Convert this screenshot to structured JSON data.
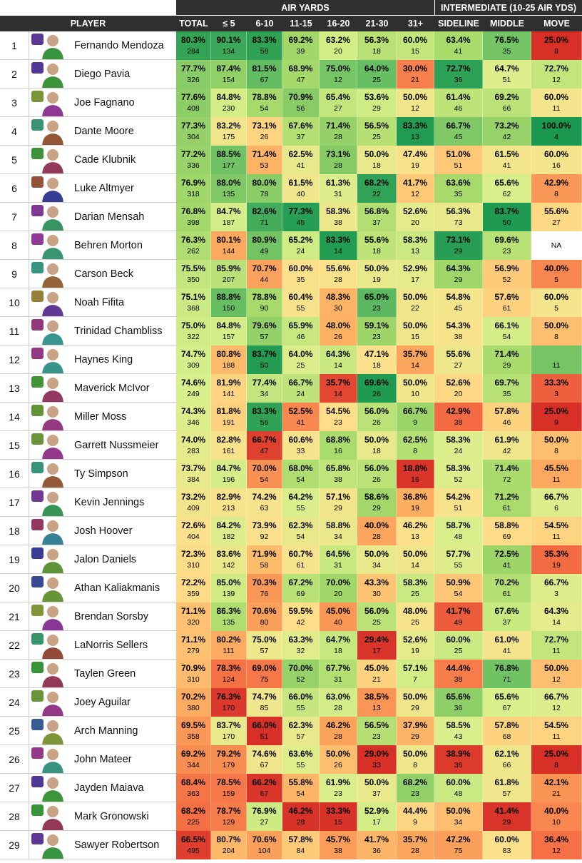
{
  "groups": {
    "air_yards": "AIR YARDS",
    "intermediate": "INTERMEDIATE (10-25 AIR YDS)"
  },
  "headers": {
    "player": "PLAYER",
    "total": "TOTAL",
    "le5": "≤ 5",
    "y6_10": "6-10",
    "y11_15": "11-15",
    "y16_20": "16-20",
    "y21_30": "21-30",
    "y31": "31+",
    "sideline": "SIDELINE",
    "middle": "MIDDLE",
    "move": "MOVE"
  },
  "colors": {
    "header_bg": "#2f2f2f",
    "row_border": "#cfcfcf"
  },
  "players": [
    {
      "rank": "1",
      "name": "Fernando Mendoza",
      "logo": "indiana-logo-icon",
      "stats": [
        [
          "80.3%",
          "284"
        ],
        [
          "90.1%",
          "134"
        ],
        [
          "83.3%",
          "58"
        ],
        [
          "69.2%",
          "39"
        ],
        [
          "63.2%",
          "20"
        ],
        [
          "56.3%",
          "18"
        ],
        [
          "60.0%",
          "15"
        ],
        [
          "63.4%",
          "41"
        ],
        [
          "76.5%",
          "35"
        ],
        [
          "25.0%",
          "8"
        ]
      ]
    },
    {
      "rank": "2",
      "name": "Diego Pavia",
      "logo": "vanderbilt-logo-icon",
      "stats": [
        [
          "77.7%",
          "326"
        ],
        [
          "87.4%",
          "154"
        ],
        [
          "81.5%",
          "67"
        ],
        [
          "68.9%",
          "47"
        ],
        [
          "75.0%",
          "12"
        ],
        [
          "64.0%",
          "25"
        ],
        [
          "30.0%",
          "21"
        ],
        [
          "72.7%",
          "36"
        ],
        [
          "64.7%",
          "51"
        ],
        [
          "72.7%",
          "12"
        ]
      ]
    },
    {
      "rank": "3",
      "name": "Joe Fagnano",
      "logo": "uconn-logo-icon",
      "stats": [
        [
          "77.6%",
          "408"
        ],
        [
          "84.8%",
          "230"
        ],
        [
          "78.8%",
          "54"
        ],
        [
          "70.9%",
          "56"
        ],
        [
          "65.4%",
          "27"
        ],
        [
          "53.6%",
          "29"
        ],
        [
          "50.0%",
          "12"
        ],
        [
          "61.4%",
          "46"
        ],
        [
          "69.2%",
          "66"
        ],
        [
          "60.0%",
          "11"
        ]
      ]
    },
    {
      "rank": "4",
      "name": "Dante Moore",
      "logo": "oregon-logo-icon",
      "stats": [
        [
          "77.3%",
          "304"
        ],
        [
          "83.2%",
          "175"
        ],
        [
          "73.1%",
          "26"
        ],
        [
          "67.6%",
          "37"
        ],
        [
          "71.4%",
          "28"
        ],
        [
          "56.5%",
          "25"
        ],
        [
          "83.3%",
          "13"
        ],
        [
          "66.7%",
          "45"
        ],
        [
          "73.2%",
          "42"
        ],
        [
          "100.0%",
          "4"
        ]
      ]
    },
    {
      "rank": "5",
      "name": "Cade Klubnik",
      "logo": "clemson-logo-icon",
      "stats": [
        [
          "77.2%",
          "336"
        ],
        [
          "88.5%",
          "177"
        ],
        [
          "71.4%",
          "53"
        ],
        [
          "62.5%",
          "41"
        ],
        [
          "73.1%",
          "28"
        ],
        [
          "50.0%",
          "18"
        ],
        [
          "47.4%",
          "19"
        ],
        [
          "51.0%",
          "51"
        ],
        [
          "61.5%",
          "41"
        ],
        [
          "60.0%",
          "16"
        ]
      ]
    },
    {
      "rank": "6",
      "name": "Luke Altmyer",
      "logo": "illinois-logo-icon",
      "stats": [
        [
          "76.9%",
          "318"
        ],
        [
          "88.0%",
          "135"
        ],
        [
          "80.0%",
          "78"
        ],
        [
          "61.5%",
          "40"
        ],
        [
          "61.3%",
          "31"
        ],
        [
          "68.2%",
          "22"
        ],
        [
          "41.7%",
          "12"
        ],
        [
          "63.6%",
          "35"
        ],
        [
          "65.6%",
          "62"
        ],
        [
          "42.9%",
          "8"
        ]
      ]
    },
    {
      "rank": "7",
      "name": "Darian Mensah",
      "logo": "duke-logo-icon",
      "stats": [
        [
          "76.8%",
          "398"
        ],
        [
          "84.7%",
          "187"
        ],
        [
          "82.6%",
          "71"
        ],
        [
          "77.3%",
          "45"
        ],
        [
          "58.3%",
          "38"
        ],
        [
          "56.8%",
          "37"
        ],
        [
          "52.6%",
          "20"
        ],
        [
          "56.3%",
          "73"
        ],
        [
          "83.7%",
          "50"
        ],
        [
          "55.6%",
          "27"
        ]
      ]
    },
    {
      "rank": "8",
      "name": "Behren Morton",
      "logo": "texas-tech-logo-icon",
      "stats": [
        [
          "76.3%",
          "262"
        ],
        [
          "80.1%",
          "144"
        ],
        [
          "80.9%",
          "49"
        ],
        [
          "65.2%",
          "24"
        ],
        [
          "83.3%",
          "14"
        ],
        [
          "55.6%",
          "18"
        ],
        [
          "58.3%",
          "13"
        ],
        [
          "73.1%",
          "29"
        ],
        [
          "69.6%",
          "23"
        ],
        [
          "NA",
          ""
        ]
      ]
    },
    {
      "rank": "9",
      "name": "Carson Beck",
      "logo": "miami-logo-icon",
      "stats": [
        [
          "75.5%",
          "350"
        ],
        [
          "85.9%",
          "207"
        ],
        [
          "70.7%",
          "44"
        ],
        [
          "60.0%",
          "35"
        ],
        [
          "55.6%",
          "28"
        ],
        [
          "50.0%",
          "19"
        ],
        [
          "52.9%",
          "17"
        ],
        [
          "64.3%",
          "29"
        ],
        [
          "56.9%",
          "52"
        ],
        [
          "40.0%",
          "5"
        ]
      ]
    },
    {
      "rank": "10",
      "name": "Noah Fifita",
      "logo": "arizona-logo-icon",
      "stats": [
        [
          "75.1%",
          "368"
        ],
        [
          "88.8%",
          "150"
        ],
        [
          "78.8%",
          "90"
        ],
        [
          "60.4%",
          "55"
        ],
        [
          "48.3%",
          "30"
        ],
        [
          "65.0%",
          "23"
        ],
        [
          "50.0%",
          "22"
        ],
        [
          "54.8%",
          "45"
        ],
        [
          "57.6%",
          "61"
        ],
        [
          "60.0%",
          "5"
        ]
      ]
    },
    {
      "rank": "11",
      "name": "Trinidad Chambliss",
      "logo": "ole-miss-logo-icon",
      "stats": [
        [
          "75.0%",
          "322"
        ],
        [
          "84.8%",
          "157"
        ],
        [
          "79.6%",
          "57"
        ],
        [
          "65.9%",
          "46"
        ],
        [
          "48.0%",
          "26"
        ],
        [
          "59.1%",
          "23"
        ],
        [
          "50.0%",
          "15"
        ],
        [
          "54.3%",
          "38"
        ],
        [
          "66.1%",
          "54"
        ],
        [
          "50.0%",
          "8"
        ]
      ]
    },
    {
      "rank": "12",
      "name": "Haynes King",
      "logo": "georgia-tech-logo-icon",
      "stats": [
        [
          "74.7%",
          "309"
        ],
        [
          "80.8%",
          "188"
        ],
        [
          "83.7%",
          "50"
        ],
        [
          "64.0%",
          "25"
        ],
        [
          "64.3%",
          "14"
        ],
        [
          "47.1%",
          "18"
        ],
        [
          "35.7%",
          "14"
        ],
        [
          "55.6%",
          "27"
        ],
        [
          "71.4%",
          "29"
        ],
        [
          "",
          "11"
        ]
      ]
    },
    {
      "rank": "13",
      "name": "Maverick McIvor",
      "logo": "wku-logo-icon",
      "stats": [
        [
          "74.6%",
          "249"
        ],
        [
          "81.9%",
          "141"
        ],
        [
          "77.4%",
          "34"
        ],
        [
          "66.7%",
          "24"
        ],
        [
          "35.7%",
          "14"
        ],
        [
          "69.6%",
          "26"
        ],
        [
          "50.0%",
          "10"
        ],
        [
          "52.6%",
          "20"
        ],
        [
          "69.7%",
          "35"
        ],
        [
          "33.3%",
          "3"
        ]
      ]
    },
    {
      "rank": "14",
      "name": "Miller Moss",
      "logo": "louisville-logo-icon",
      "stats": [
        [
          "74.3%",
          "346"
        ],
        [
          "81.8%",
          "191"
        ],
        [
          "83.3%",
          "56"
        ],
        [
          "52.5%",
          "41"
        ],
        [
          "54.5%",
          "23"
        ],
        [
          "56.0%",
          "26"
        ],
        [
          "66.7%",
          "9"
        ],
        [
          "42.9%",
          "38"
        ],
        [
          "57.8%",
          "46"
        ],
        [
          "25.0%",
          "9"
        ]
      ]
    },
    {
      "rank": "15",
      "name": "Garrett Nussmeier",
      "logo": "lsu-logo-icon",
      "stats": [
        [
          "74.0%",
          "283"
        ],
        [
          "82.8%",
          "161"
        ],
        [
          "66.7%",
          "47"
        ],
        [
          "60.6%",
          "33"
        ],
        [
          "68.8%",
          "16"
        ],
        [
          "50.0%",
          "18"
        ],
        [
          "62.5%",
          "8"
        ],
        [
          "58.3%",
          "24"
        ],
        [
          "61.9%",
          "42"
        ],
        [
          "50.0%",
          "8"
        ]
      ]
    },
    {
      "rank": "16",
      "name": "Ty Simpson",
      "logo": "alabama-logo-icon",
      "stats": [
        [
          "73.7%",
          "384"
        ],
        [
          "84.7%",
          "196"
        ],
        [
          "70.0%",
          "54"
        ],
        [
          "68.0%",
          "54"
        ],
        [
          "65.8%",
          "38"
        ],
        [
          "56.0%",
          "26"
        ],
        [
          "18.8%",
          "16"
        ],
        [
          "58.3%",
          "52"
        ],
        [
          "71.4%",
          "72"
        ],
        [
          "45.5%",
          "11"
        ]
      ]
    },
    {
      "rank": "17",
      "name": "Kevin Jennings",
      "logo": "smu-logo-icon",
      "stats": [
        [
          "73.2%",
          "409"
        ],
        [
          "82.9%",
          "213"
        ],
        [
          "74.2%",
          "63"
        ],
        [
          "64.2%",
          "55"
        ],
        [
          "57.1%",
          "29"
        ],
        [
          "58.6%",
          "29"
        ],
        [
          "36.8%",
          "19"
        ],
        [
          "54.2%",
          "51"
        ],
        [
          "71.2%",
          "61"
        ],
        [
          "66.7%",
          "6"
        ]
      ]
    },
    {
      "rank": "18",
      "name": "Josh Hoover",
      "logo": "tcu-logo-icon",
      "stats": [
        [
          "72.6%",
          "404"
        ],
        [
          "84.2%",
          "182"
        ],
        [
          "73.9%",
          "92"
        ],
        [
          "62.3%",
          "54"
        ],
        [
          "58.8%",
          "34"
        ],
        [
          "40.0%",
          "28"
        ],
        [
          "46.2%",
          "13"
        ],
        [
          "58.7%",
          "48"
        ],
        [
          "58.8%",
          "69"
        ],
        [
          "54.5%",
          "11"
        ]
      ]
    },
    {
      "rank": "19",
      "name": "Jalon Daniels",
      "logo": "kansas-logo-icon",
      "stats": [
        [
          "72.3%",
          "310"
        ],
        [
          "83.6%",
          "142"
        ],
        [
          "71.9%",
          "58"
        ],
        [
          "60.7%",
          "61"
        ],
        [
          "64.5%",
          "31"
        ],
        [
          "50.0%",
          "34"
        ],
        [
          "50.0%",
          "14"
        ],
        [
          "57.7%",
          "55"
        ],
        [
          "72.5%",
          "41"
        ],
        [
          "35.3%",
          "19"
        ]
      ]
    },
    {
      "rank": "20",
      "name": "Athan Kaliakmanis",
      "logo": "rutgers-logo-icon",
      "stats": [
        [
          "72.2%",
          "359"
        ],
        [
          "85.0%",
          "139"
        ],
        [
          "70.3%",
          "76"
        ],
        [
          "67.2%",
          "69"
        ],
        [
          "70.0%",
          "20"
        ],
        [
          "43.3%",
          "30"
        ],
        [
          "58.3%",
          "25"
        ],
        [
          "50.9%",
          "54"
        ],
        [
          "70.2%",
          "61"
        ],
        [
          "66.7%",
          "3"
        ]
      ]
    },
    {
      "rank": "21",
      "name": "Brendan Sorsby",
      "logo": "cincinnati-logo-icon",
      "stats": [
        [
          "71.1%",
          "320"
        ],
        [
          "86.3%",
          "135"
        ],
        [
          "70.6%",
          "80"
        ],
        [
          "59.5%",
          "42"
        ],
        [
          "45.0%",
          "40"
        ],
        [
          "56.0%",
          "25"
        ],
        [
          "48.0%",
          "25"
        ],
        [
          "41.7%",
          "49"
        ],
        [
          "67.6%",
          "37"
        ],
        [
          "64.3%",
          "14"
        ]
      ]
    },
    {
      "rank": "22",
      "name": "LaNorris Sellers",
      "logo": "south-carolina-logo-icon",
      "stats": [
        [
          "71.1%",
          "279"
        ],
        [
          "80.2%",
          "111"
        ],
        [
          "75.0%",
          "57"
        ],
        [
          "63.3%",
          "32"
        ],
        [
          "64.7%",
          "18"
        ],
        [
          "29.4%",
          "17"
        ],
        [
          "52.6%",
          "19"
        ],
        [
          "60.0%",
          "25"
        ],
        [
          "61.0%",
          "41"
        ],
        [
          "72.7%",
          "11"
        ]
      ]
    },
    {
      "rank": "23",
      "name": "Taylen Green",
      "logo": "arkansas-logo-icon",
      "stats": [
        [
          "70.9%",
          "310"
        ],
        [
          "78.3%",
          "124"
        ],
        [
          "69.0%",
          "75"
        ],
        [
          "70.0%",
          "52"
        ],
        [
          "67.7%",
          "31"
        ],
        [
          "45.0%",
          "21"
        ],
        [
          "57.1%",
          "7"
        ],
        [
          "44.4%",
          "38"
        ],
        [
          "76.8%",
          "71"
        ],
        [
          "50.0%",
          "12"
        ]
      ]
    },
    {
      "rank": "24",
      "name": "Joey Aguilar",
      "logo": "tennessee-logo-icon",
      "stats": [
        [
          "70.2%",
          "380"
        ],
        [
          "76.3%",
          "170"
        ],
        [
          "74.7%",
          "85"
        ],
        [
          "66.0%",
          "55"
        ],
        [
          "63.0%",
          "28"
        ],
        [
          "38.5%",
          "13"
        ],
        [
          "50.0%",
          "29"
        ],
        [
          "65.6%",
          "36"
        ],
        [
          "65.6%",
          "67"
        ],
        [
          "66.7%",
          "12"
        ]
      ]
    },
    {
      "rank": "25",
      "name": "Arch Manning",
      "logo": "texas-logo-icon",
      "stats": [
        [
          "69.5%",
          "358"
        ],
        [
          "83.7%",
          "170"
        ],
        [
          "66.0%",
          "51"
        ],
        [
          "62.3%",
          "57"
        ],
        [
          "46.2%",
          "28"
        ],
        [
          "56.5%",
          "23"
        ],
        [
          "37.9%",
          "29"
        ],
        [
          "58.5%",
          "43"
        ],
        [
          "57.8%",
          "68"
        ],
        [
          "54.5%",
          "11"
        ]
      ]
    },
    {
      "rank": "26",
      "name": "John Mateer",
      "logo": "oklahoma-logo-icon",
      "stats": [
        [
          "69.2%",
          "344"
        ],
        [
          "79.2%",
          "179"
        ],
        [
          "74.6%",
          "67"
        ],
        [
          "63.6%",
          "55"
        ],
        [
          "50.0%",
          "26"
        ],
        [
          "29.0%",
          "33"
        ],
        [
          "50.0%",
          "8"
        ],
        [
          "38.9%",
          "36"
        ],
        [
          "62.1%",
          "66"
        ],
        [
          "25.0%",
          "8"
        ]
      ]
    },
    {
      "rank": "27",
      "name": "Jayden Maiava",
      "logo": "usc-logo-icon",
      "stats": [
        [
          "68.4%",
          "363"
        ],
        [
          "78.5%",
          "159"
        ],
        [
          "66.2%",
          "67"
        ],
        [
          "55.8%",
          "54"
        ],
        [
          "61.9%",
          "23"
        ],
        [
          "50.0%",
          "37"
        ],
        [
          "68.2%",
          "23"
        ],
        [
          "60.0%",
          "48"
        ],
        [
          "61.8%",
          "57"
        ],
        [
          "42.1%",
          "21"
        ]
      ]
    },
    {
      "rank": "28",
      "name": "Mark Gronowski",
      "logo": "iowa-logo-icon",
      "stats": [
        [
          "68.2%",
          "225"
        ],
        [
          "78.7%",
          "129"
        ],
        [
          "76.9%",
          "27"
        ],
        [
          "46.2%",
          "28"
        ],
        [
          "33.3%",
          "15"
        ],
        [
          "52.9%",
          "17"
        ],
        [
          "44.4%",
          "9"
        ],
        [
          "50.0%",
          "34"
        ],
        [
          "41.4%",
          "29"
        ],
        [
          "40.0%",
          "10"
        ]
      ]
    },
    {
      "rank": "29",
      "name": "Sawyer Robertson",
      "logo": "baylor-logo-icon",
      "stats": [
        [
          "66.5%",
          "495"
        ],
        [
          "80.7%",
          "204"
        ],
        [
          "70.6%",
          "104"
        ],
        [
          "57.8%",
          "84"
        ],
        [
          "45.7%",
          "38"
        ],
        [
          "41.7%",
          "36"
        ],
        [
          "35.7%",
          "28"
        ],
        [
          "47.2%",
          "75"
        ],
        [
          "60.0%",
          "83"
        ],
        [
          "36.4%",
          "12"
        ]
      ]
    }
  ]
}
